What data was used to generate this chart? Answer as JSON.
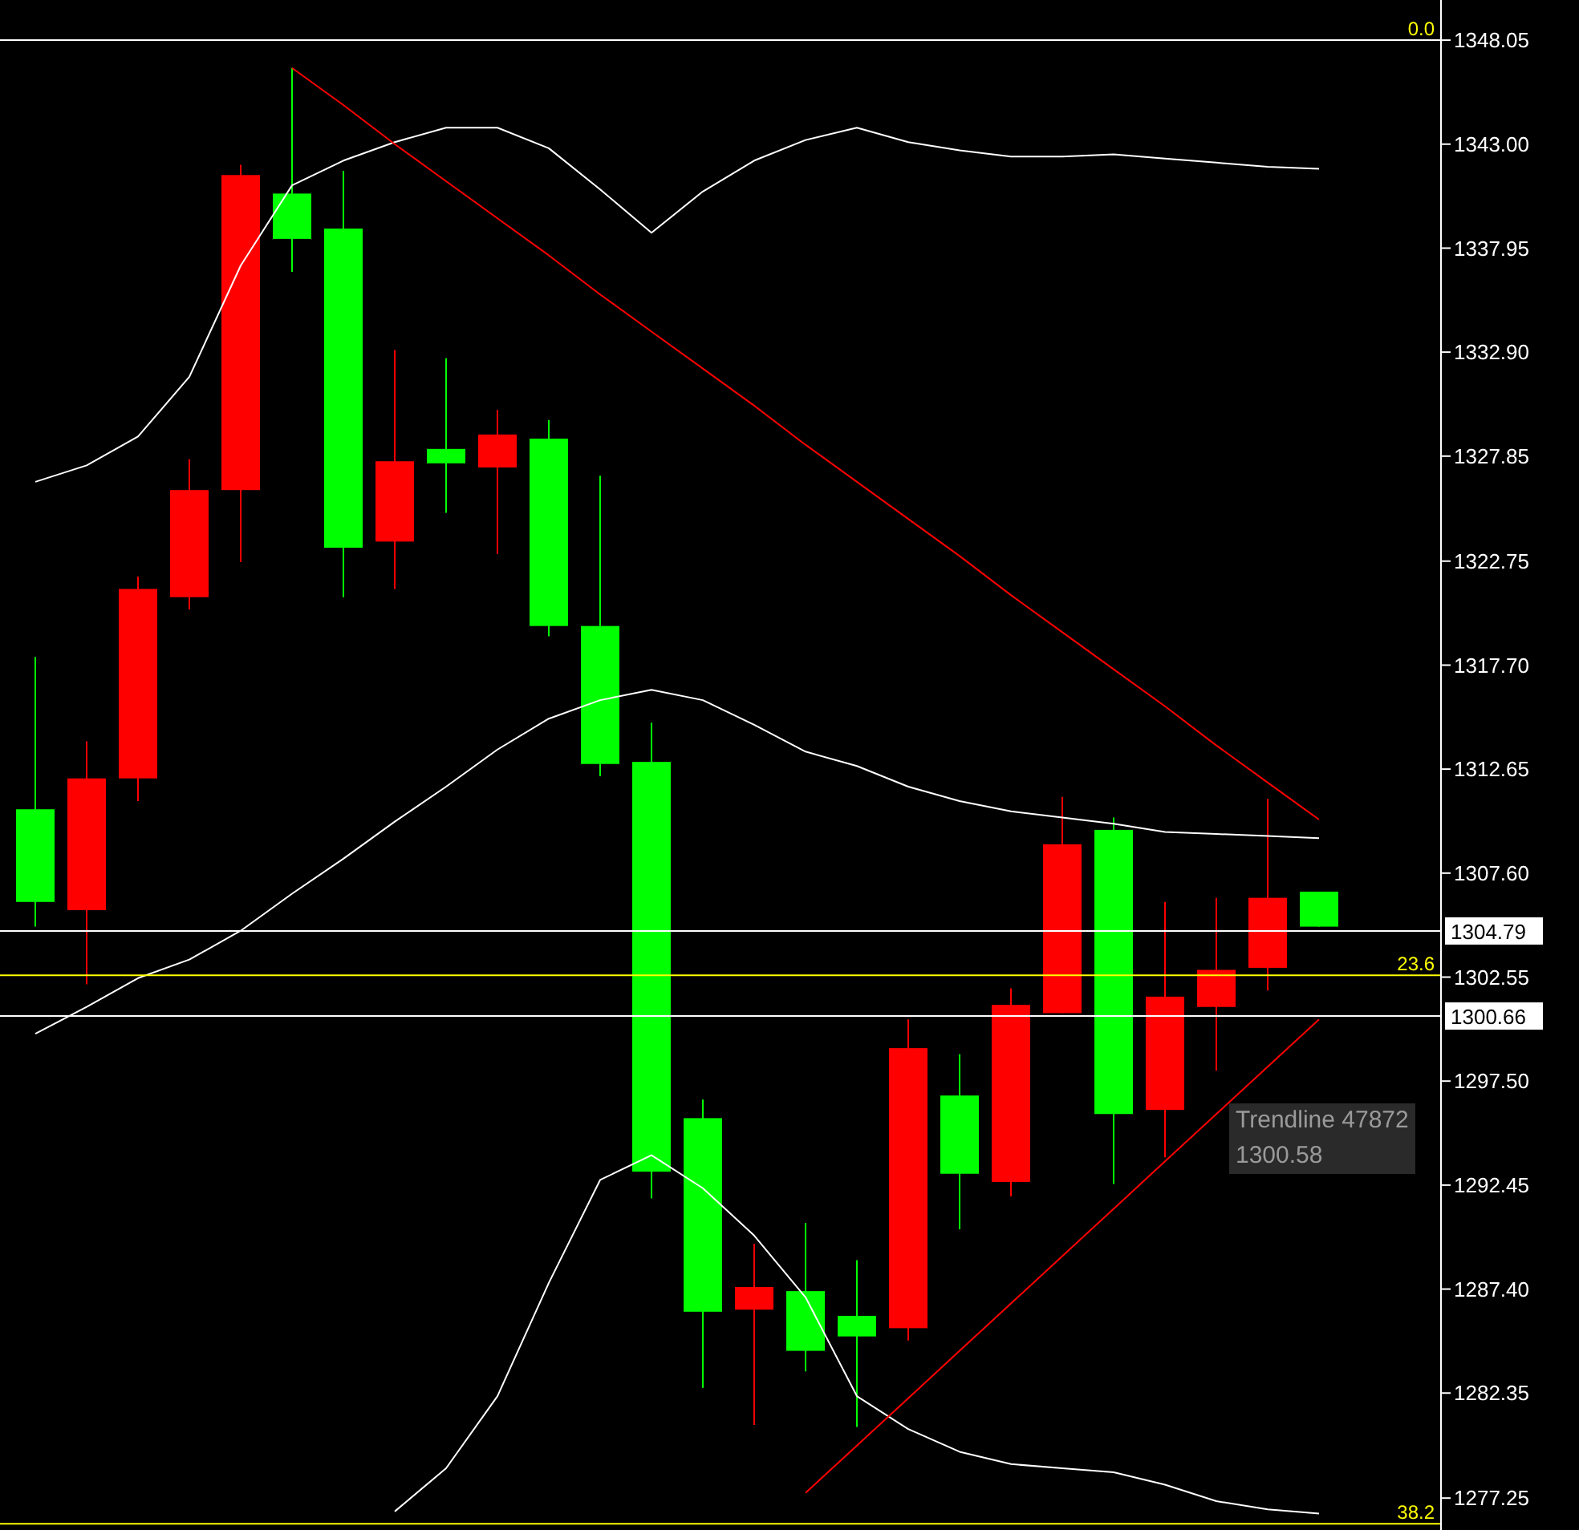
{
  "chart_data": {
    "type": "candlestick",
    "categories": [
      null,
      null,
      null,
      null,
      null,
      null,
      null,
      null,
      null,
      null,
      null,
      null,
      null,
      null,
      null,
      null,
      null,
      null,
      null,
      null,
      null,
      null,
      null,
      null,
      null,
      null
    ],
    "ylim": [
      1275.7,
      1350.0
    ],
    "yticks": [
      {
        "value": 1348.05,
        "label": "1348.05"
      },
      {
        "value": 1343,
        "label": "1343.00"
      },
      {
        "value": 1337.95,
        "label": "1337.95"
      },
      {
        "value": 1332.9,
        "label": "1332.90"
      },
      {
        "value": 1327.85,
        "label": "1327.85"
      },
      {
        "value": 1322.75,
        "label": "1322.75"
      },
      {
        "value": 1317.7,
        "label": "1317.70"
      },
      {
        "value": 1312.65,
        "label": "1312.65"
      },
      {
        "value": 1307.6,
        "label": "1307.60"
      },
      {
        "value": 1302.55,
        "label": "1302.55"
      },
      {
        "value": 1297.5,
        "label": "1297.50"
      },
      {
        "value": 1292.45,
        "label": "1292.45"
      },
      {
        "value": 1287.4,
        "label": "1287.40"
      },
      {
        "value": 1282.35,
        "label": "1282.35"
      },
      {
        "value": 1277.25,
        "label": "1277.25"
      }
    ],
    "tick_labels": "y",
    "grid": false,
    "legend": false,
    "series": [
      {
        "ohlc": [
          [
            1310.7,
            1318.1,
            1305.0,
            1306.2
          ],
          [
            1305.8,
            1314.0,
            1302.2,
            1312.2
          ],
          [
            1312.2,
            1322.0,
            1311.1,
            1321.4
          ],
          [
            1321.0,
            1327.7,
            1320.4,
            1326.2
          ],
          [
            1326.2,
            1342.0,
            1322.7,
            1341.5
          ],
          [
            1340.6,
            1346.7,
            1336.8,
            1338.4
          ],
          [
            1338.9,
            1341.7,
            1321.0,
            1323.4
          ],
          [
            1323.7,
            1333.0,
            1321.4,
            1327.6
          ],
          [
            1328.2,
            1332.6,
            1325.1,
            1327.5
          ],
          [
            1327.3,
            1330.1,
            1323.1,
            1328.9
          ],
          [
            1328.7,
            1329.6,
            1319.1,
            1319.6
          ],
          [
            1319.6,
            1326.9,
            1312.3,
            1312.9
          ],
          [
            1313.0,
            1314.9,
            1291.8,
            1293.1
          ],
          [
            1295.7,
            1296.6,
            1282.6,
            1286.3
          ],
          [
            1286.4,
            1289.6,
            1280.8,
            1287.5
          ],
          [
            1287.3,
            1290.6,
            1283.4,
            1284.4
          ],
          [
            1286.1,
            1288.8,
            1280.7,
            1285.1
          ],
          [
            1285.5,
            1300.5,
            1284.9,
            1299.1
          ],
          [
            1296.8,
            1298.8,
            1290.3,
            1293.0
          ],
          [
            1292.6,
            1302.0,
            1291.9,
            1301.2
          ],
          [
            1300.8,
            1311.3,
            1300.8,
            1309.0
          ],
          [
            1309.7,
            1310.3,
            1292.5,
            1295.9
          ],
          [
            1296.1,
            1306.2,
            1293.8,
            1301.6
          ],
          [
            1301.1,
            1306.4,
            1298.0,
            1302.9
          ],
          [
            1303.0,
            1311.2,
            1301.9,
            1306.4
          ],
          [
            1306.7,
            1306.7,
            1305.0,
            1305.0
          ]
        ],
        "colors": [
          "#00ff00",
          "#ff0000",
          "#ff0000",
          "#ff0000",
          "#ff0000",
          "#00ff00",
          "#00ff00",
          "#ff0000",
          "#00ff00",
          "#ff0000",
          "#00ff00",
          "#00ff00",
          "#00ff00",
          "#00ff00",
          "#ff0000",
          "#00ff00",
          "#00ff00",
          "#ff0000",
          "#00ff00",
          "#ff0000",
          "#ff0000",
          "#00ff00",
          "#ff0000",
          "#ff0000",
          "#ff0000",
          "#00ff00"
        ]
      },
      {
        "type": "line",
        "color": "#ffffff",
        "values": [
          1326.6,
          1327.4,
          1328.8,
          1331.7,
          1337.1,
          1341.0,
          1342.2,
          1343.1,
          1343.8,
          1343.8,
          1342.8,
          1340.8,
          1338.7,
          1340.7,
          1342.2,
          1343.2,
          1343.8,
          1343.1,
          1342.7,
          1342.4,
          1342.4,
          1342.5,
          1342.3,
          1342.1,
          1341.9,
          1341.8
        ]
      },
      {
        "type": "line",
        "color": "#ffffff",
        "values": [
          1299.8,
          1301.1,
          1302.5,
          1303.4,
          1304.8,
          1306.6,
          1308.3,
          1310.1,
          1311.8,
          1313.6,
          1315.1,
          1316.0,
          1316.5,
          1316.0,
          1314.8,
          1313.5,
          1312.8,
          1311.8,
          1311.1,
          1310.6,
          1310.3,
          1310.0,
          1309.6,
          1309.5,
          1309.4,
          1309.3
        ]
      },
      {
        "type": "line",
        "color": "#ffffff",
        "values": [
          null,
          null,
          null,
          null,
          null,
          null,
          null,
          1276.6,
          1278.7,
          1282.2,
          1287.7,
          1292.7,
          1293.9,
          1292.3,
          1290.0,
          1287.0,
          1282.2,
          1280.6,
          1279.5,
          1278.9,
          1278.7,
          1278.5,
          1277.9,
          1277.1,
          1276.7,
          1276.5
        ]
      },
      {
        "type": "line",
        "color": "#ff0000",
        "values": [
          null,
          null,
          null,
          null,
          null,
          1346.7,
          1344.9,
          1343.0,
          1341.2,
          1339.4,
          1337.6,
          1335.7,
          1333.9,
          1332.1,
          1330.3,
          1328.4,
          1326.6,
          1324.8,
          1323.0,
          1321.1,
          1319.3,
          1317.5,
          1315.7,
          1313.8,
          1312.0,
          1310.2
        ]
      },
      {
        "type": "line",
        "color": "#ff0000",
        "values": [
          null,
          null,
          null,
          null,
          null,
          null,
          null,
          null,
          null,
          null,
          null,
          null,
          null,
          null,
          null,
          1277.5,
          1279.8,
          1282.1,
          1284.4,
          1286.7,
          1289.0,
          1291.3,
          1293.6,
          1295.9,
          1298.2,
          1300.5
        ]
      }
    ],
    "ref_lines": [
      {
        "axis": "y",
        "value": 1348.05,
        "color": "#ffffff"
      },
      {
        "axis": "y",
        "value": 1302.64,
        "color": "#ffff00"
      },
      {
        "axis": "y",
        "value": 1276.0,
        "color": "#ffff00"
      },
      {
        "axis": "y",
        "value": 1304.79,
        "label": "1304.79",
        "color": "#ffffff"
      },
      {
        "axis": "y",
        "value": 1300.66,
        "label": "1300.66",
        "color": "#ffffff"
      }
    ],
    "annotations": [
      {
        "text": "0.0",
        "y": 1348.05
      },
      {
        "text": "23.6",
        "y": 1302.64
      },
      {
        "text": "38.2",
        "y": 1276.0
      },
      "Trendline 47872",
      "1300.58"
    ]
  }
}
